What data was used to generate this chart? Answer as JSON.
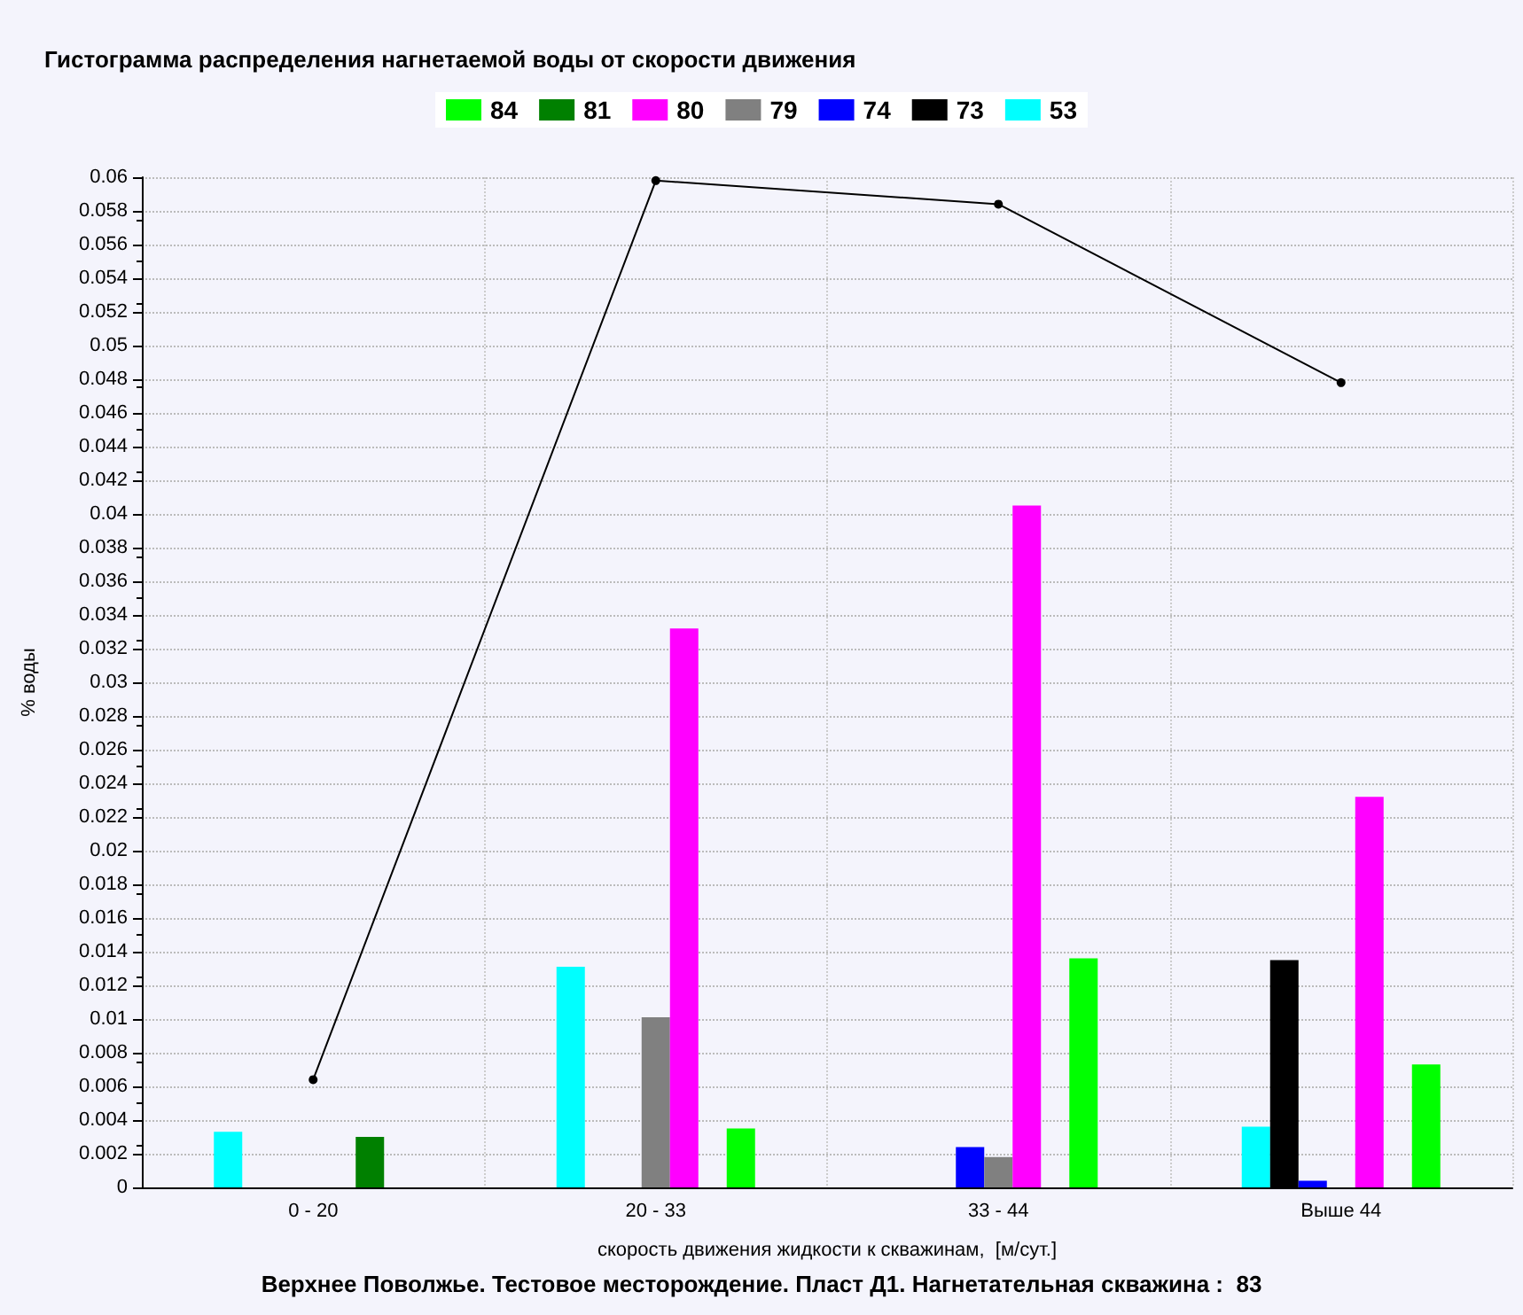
{
  "chart_data": {
    "type": "bar",
    "title": "Гистограмма распределения нагнетаемой воды от скорости движения",
    "xlabel": "скорость движения жидкости к скважинам,  [м/сут.]",
    "ylabel": "% воды",
    "annotations": [
      "Верхнее Поволжье. Тестовое месторождение. Пласт Д1. Нагнетательная скважина :  83"
    ],
    "categories": [
      "0 - 20",
      "20 - 33",
      "33 - 44",
      "Выше 44"
    ],
    "series": [
      {
        "name": "84",
        "color": "#00ff00",
        "values": [
          null,
          0.0035,
          0.0136,
          0.0073
        ]
      },
      {
        "name": "81",
        "color": "#008000",
        "values": [
          0.003,
          null,
          null,
          null
        ]
      },
      {
        "name": "80",
        "color": "#ff00ff",
        "values": [
          null,
          0.0332,
          0.0405,
          0.0232
        ]
      },
      {
        "name": "79",
        "color": "#808080",
        "values": [
          null,
          0.0101,
          0.0018,
          null
        ]
      },
      {
        "name": "74",
        "color": "#0000ff",
        "values": [
          null,
          null,
          0.0024,
          0.0004
        ]
      },
      {
        "name": "73",
        "color": "#000000",
        "values": [
          null,
          null,
          null,
          0.0135
        ]
      },
      {
        "name": "53",
        "color": "#00ffff",
        "values": [
          0.0033,
          0.0131,
          null,
          0.0036
        ]
      },
      {
        "type": "line",
        "color": "#000000",
        "values": [
          0.0064,
          0.0598,
          0.0584,
          0.0478
        ]
      }
    ],
    "ylim": [
      0,
      0.06
    ],
    "yticks": [
      0,
      0.002,
      0.004,
      0.006,
      0.008,
      0.01,
      0.012,
      0.014,
      0.016,
      0.018,
      0.02,
      0.022,
      0.024,
      0.026,
      0.028,
      0.03,
      0.032,
      0.034,
      0.036,
      0.038,
      0.04,
      0.042,
      0.044,
      0.046,
      0.048,
      0.05,
      0.052,
      0.054,
      0.056,
      0.058,
      0.06
    ],
    "grid": true,
    "legend": "top",
    "marker": "circle",
    "line_style": "solid"
  }
}
